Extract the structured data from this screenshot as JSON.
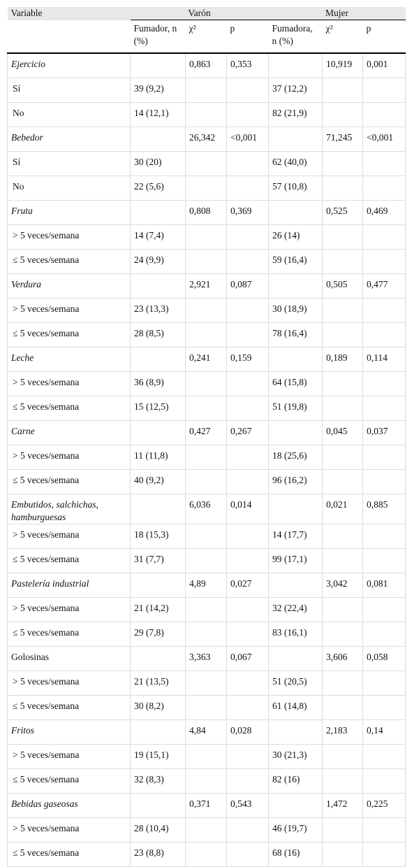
{
  "table": {
    "header": [
      "Variable",
      "Varón",
      "Mujer"
    ],
    "subheader": [
      "Fumador, n (%)",
      "χ²",
      "p",
      "Fumadora, n (%)",
      "χ²",
      "p"
    ],
    "italic_rows": [
      0,
      3,
      6,
      9,
      12,
      15,
      18,
      21,
      27,
      30
    ],
    "rows": [
      [
        "Ejercicio",
        null,
        "0,863",
        "0,353",
        null,
        "10,919",
        "0,001"
      ],
      [
        "Sí",
        "39 (9,2)",
        null,
        null,
        "37 (12,2)",
        null,
        null
      ],
      [
        "No",
        "14 (12,1)",
        null,
        null,
        "82 (21,9)",
        null,
        null
      ],
      [
        "Bebedor",
        null,
        "26,342",
        "<0,001",
        null,
        "71,245",
        "<0,001"
      ],
      [
        "Sí",
        "30 (20)",
        null,
        null,
        "62 (40,0)",
        null,
        null
      ],
      [
        "No",
        "22 (5,6)",
        null,
        null,
        "57 (10,8)",
        null,
        null
      ],
      [
        "Fruta",
        null,
        "0,808",
        "0,369",
        null,
        "0,525",
        "0,469"
      ],
      [
        "> 5 veces/semana",
        "14 (7,4)",
        null,
        null,
        "26 (14)",
        null,
        null
      ],
      [
        "≤ 5 veces/semana",
        "24 (9,9)",
        null,
        null,
        "59 (16,4)",
        null,
        null
      ],
      [
        "Verdura",
        null,
        "2,921",
        "0,087",
        null,
        "0,505",
        "0,477"
      ],
      [
        "> 5 veces/semana",
        "23 (13,3)",
        null,
        null,
        "30 (18,9)",
        null,
        null
      ],
      [
        "≤ 5 veces/semana",
        "28 (8,5)",
        null,
        null,
        "78 (16,4)",
        null,
        null
      ],
      [
        "Leche",
        null,
        "0,241",
        "0,159",
        null,
        "0,189",
        "0,114"
      ],
      [
        "> 5 veces/semana",
        "36 (8,9)",
        null,
        null,
        "64 (15,8)",
        null,
        null
      ],
      [
        "≤ 5 veces/semana",
        "15 (12,5)",
        null,
        null,
        "51 (19,8)",
        null,
        null
      ],
      [
        "Carne",
        null,
        "0,427",
        "0,267",
        null,
        "0,045",
        "0,037"
      ],
      [
        "> 5 veces/semana",
        "11 (11,8)",
        null,
        null,
        "18 (25,6)",
        null,
        null
      ],
      [
        "≤ 5 veces/semana",
        "40 (9,2)",
        null,
        null,
        "96 (16,2)",
        null,
        null
      ],
      [
        "Embutidos, salchichas, hamburguesas",
        null,
        "6,036",
        "0,014",
        null,
        "0,021",
        "0,885"
      ],
      [
        "> 5 veces/semana",
        "18 (15,3)",
        null,
        null,
        "14 (17,7)",
        null,
        null
      ],
      [
        "≤ 5 veces/semana",
        "31 (7,7)",
        null,
        null,
        "99 (17,1)",
        null,
        null
      ],
      [
        "Pastelería industrial",
        null,
        "4,89",
        "0,027",
        null,
        "3,042",
        "0,081"
      ],
      [
        "> 5 veces/semana",
        "21 (14,2)",
        null,
        null,
        "32 (22,4)",
        null,
        null
      ],
      [
        "≤ 5 veces/semana",
        "29 (7,8)",
        null,
        null,
        "83 (16,1)",
        null,
        null
      ],
      [
        "Golosinas",
        null,
        "3,363",
        "0,067",
        null,
        "3,606",
        "0,058"
      ],
      [
        "> 5 veces/semana",
        "21 (13,5)",
        null,
        null,
        "51 (20,5)",
        null,
        null
      ],
      [
        "≤ 5 veces/semana",
        "30 (8,2)",
        null,
        null,
        "61 (14,8)",
        null,
        null
      ],
      [
        "Fritos",
        null,
        "4,84",
        "0,028",
        null,
        "2,183",
        "0,14"
      ],
      [
        "> 5 veces/semana",
        "19 (15,1)",
        null,
        null,
        "30 (21,3)",
        null,
        null
      ],
      [
        "≤ 5 veces/semana",
        "32 (8,3)",
        null,
        null,
        "82 (16)",
        null,
        null
      ],
      [
        "Bebidas gaseosas",
        null,
        "0,371",
        "0,543",
        null,
        "1,472",
        "0,225"
      ],
      [
        "> 5 veces/semana",
        "28 (10,4)",
        null,
        null,
        "46 (19,7)",
        null,
        null
      ],
      [
        "≤ 5 veces/semana",
        "23 (8,8)",
        null,
        null,
        "68 (16)",
        null,
        null
      ]
    ]
  }
}
